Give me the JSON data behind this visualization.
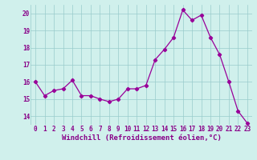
{
  "x": [
    0,
    1,
    2,
    3,
    4,
    5,
    6,
    7,
    8,
    9,
    10,
    11,
    12,
    13,
    14,
    15,
    16,
    17,
    18,
    19,
    20,
    21,
    22,
    23
  ],
  "y": [
    16.0,
    15.2,
    15.5,
    15.6,
    16.1,
    15.2,
    15.2,
    15.0,
    14.85,
    15.0,
    15.6,
    15.6,
    15.8,
    17.3,
    17.9,
    18.6,
    20.2,
    19.6,
    19.9,
    18.6,
    17.6,
    16.0,
    14.3,
    13.6
  ],
  "line_color": "#990099",
  "marker": "D",
  "markersize": 2.2,
  "linewidth": 0.9,
  "bg_color": "#d0f0ec",
  "grid_color": "#99cccc",
  "xlabel": "Windchill (Refroidissement éolien,°C)",
  "xlabel_color": "#880088",
  "tick_color": "#880088",
  "ylim": [
    13.5,
    20.5
  ],
  "xlim": [
    -0.5,
    23.5
  ],
  "xticks": [
    0,
    1,
    2,
    3,
    4,
    5,
    6,
    7,
    8,
    9,
    10,
    11,
    12,
    13,
    14,
    15,
    16,
    17,
    18,
    19,
    20,
    21,
    22,
    23
  ],
  "yticks": [
    14,
    15,
    16,
    17,
    18,
    19,
    20
  ],
  "xlabel_fontsize": 6.5,
  "tick_fontsize": 5.5,
  "title_fontsize": 7
}
